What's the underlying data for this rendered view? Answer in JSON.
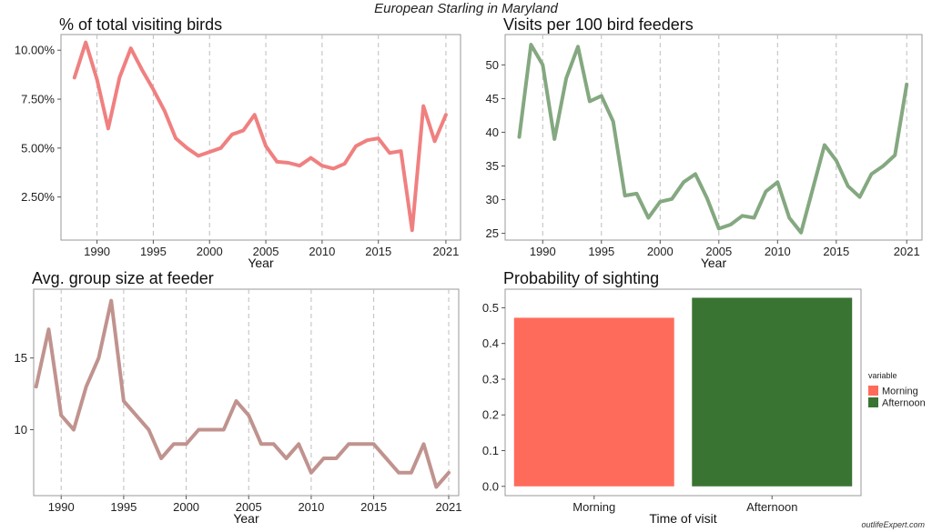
{
  "figure": {
    "title": "European Starling in Maryland",
    "credit": "outlifeExpert.com"
  },
  "chart_data": [
    {
      "type": "line",
      "title": "% of total visiting birds",
      "xlabel": "Year",
      "ylabel": "",
      "color": "#f08080",
      "x": [
        1988,
        1989,
        1990,
        1991,
        1992,
        1993,
        1994,
        1995,
        1996,
        1997,
        1998,
        1999,
        2000,
        2001,
        2002,
        2003,
        2004,
        2005,
        2006,
        2007,
        2008,
        2009,
        2010,
        2011,
        2012,
        2013,
        2014,
        2015,
        2016,
        2017,
        2018,
        2019,
        2020,
        2021
      ],
      "values": [
        8.6,
        10.4,
        8.5,
        6.0,
        8.6,
        10.1,
        9.0,
        8.0,
        6.9,
        5.5,
        5.0,
        4.6,
        4.8,
        5.0,
        5.7,
        5.9,
        6.7,
        5.1,
        4.3,
        4.25,
        4.1,
        4.5,
        4.1,
        3.95,
        4.2,
        5.1,
        5.4,
        5.5,
        4.75,
        4.85,
        0.8,
        7.15,
        5.35,
        6.7
      ],
      "xlim": [
        1986.8,
        2022.3
      ],
      "ylim": [
        0.3,
        10.8
      ],
      "xticks": [
        1990,
        1995,
        2000,
        2005,
        2010,
        2015,
        2021
      ],
      "xtick_labels": [
        "1990",
        "1995",
        "2000",
        "2005",
        "2010",
        "2015",
        "2021"
      ],
      "yticks": [
        2.5,
        5.0,
        7.5,
        10.0
      ],
      "ytick_labels": [
        "2.50%",
        "5.00%",
        "7.50%",
        "10.00%"
      ],
      "grid": "vertical dashed"
    },
    {
      "type": "line",
      "title": "Visits per 100 bird feeders",
      "xlabel": "Year",
      "ylabel": "",
      "color": "#84a880",
      "x": [
        1988,
        1989,
        1990,
        1991,
        1992,
        1993,
        1994,
        1995,
        1996,
        1997,
        1998,
        1999,
        2000,
        2001,
        2002,
        2003,
        2004,
        2005,
        2006,
        2007,
        2008,
        2009,
        2010,
        2011,
        2012,
        2013,
        2014,
        2015,
        2016,
        2017,
        2018,
        2019,
        2020,
        2021
      ],
      "values": [
        39.3,
        53.0,
        50.0,
        39.0,
        48.0,
        52.7,
        44.6,
        45.4,
        41.6,
        30.6,
        30.9,
        27.3,
        29.7,
        30.1,
        32.6,
        33.8,
        30.2,
        25.7,
        26.3,
        27.6,
        27.3,
        31.2,
        32.6,
        27.3,
        25.1,
        31.6,
        38.1,
        35.8,
        32.0,
        30.4,
        33.8,
        35.0,
        36.6,
        47.1
      ],
      "xlim": [
        1986.8,
        2022.3
      ],
      "ylim": [
        24.0,
        54.5
      ],
      "xticks": [
        1990,
        1995,
        2000,
        2005,
        2010,
        2015,
        2021
      ],
      "xtick_labels": [
        "1990",
        "1995",
        "2000",
        "2005",
        "2010",
        "2015",
        "2021"
      ],
      "yticks": [
        25,
        30,
        35,
        40,
        45,
        50
      ],
      "ytick_labels": [
        "25",
        "30",
        "35",
        "40",
        "45",
        "50"
      ],
      "grid": "vertical dashed"
    },
    {
      "type": "line",
      "title": "Avg. group size at feeder",
      "xlabel": "Year",
      "ylabel": "",
      "color": "#c0938f",
      "x": [
        1988,
        1989,
        1990,
        1991,
        1992,
        1993,
        1994,
        1995,
        1996,
        1997,
        1998,
        1999,
        2000,
        2001,
        2002,
        2003,
        2004,
        2005,
        2006,
        2007,
        2008,
        2009,
        2010,
        2011,
        2012,
        2013,
        2014,
        2015,
        2016,
        2017,
        2018,
        2019,
        2020,
        2021
      ],
      "values": [
        13,
        17,
        11,
        10,
        13,
        15,
        19,
        12,
        11,
        10,
        8,
        9,
        9,
        10,
        10,
        10,
        12,
        11,
        9,
        9,
        8,
        9,
        7,
        8,
        8,
        9,
        9,
        9,
        8,
        7,
        7,
        9,
        6,
        7
      ],
      "xlim": [
        1987.8,
        2021.8
      ],
      "ylim": [
        5.4,
        19.8
      ],
      "xticks": [
        1990,
        1995,
        2000,
        2005,
        2010,
        2015,
        2021
      ],
      "xtick_labels": [
        "1990",
        "1995",
        "2000",
        "2005",
        "2010",
        "2015",
        "2021"
      ],
      "yticks": [
        10,
        15
      ],
      "ytick_labels": [
        "10",
        "15"
      ],
      "grid": "vertical dashed"
    },
    {
      "type": "bar",
      "title": "Probability of sighting",
      "xlabel": "Time of visit",
      "ylabel": "",
      "categories": [
        "Morning",
        "Afternoon"
      ],
      "values": [
        0.472,
        0.528
      ],
      "colors": [
        "#ff6b5b",
        "#3a7432"
      ],
      "ylim": [
        -0.026,
        0.552
      ],
      "yticks": [
        0.0,
        0.1,
        0.2,
        0.3,
        0.4,
        0.5
      ],
      "ytick_labels": [
        "0.0",
        "0.1",
        "0.2",
        "0.3",
        "0.4",
        "0.5"
      ],
      "legend": {
        "title": "variable",
        "placement": "right",
        "items": [
          {
            "label": "Morning",
            "color": "#ff6b5b"
          },
          {
            "label": "Afternoon",
            "color": "#3a7432"
          }
        ]
      }
    }
  ]
}
